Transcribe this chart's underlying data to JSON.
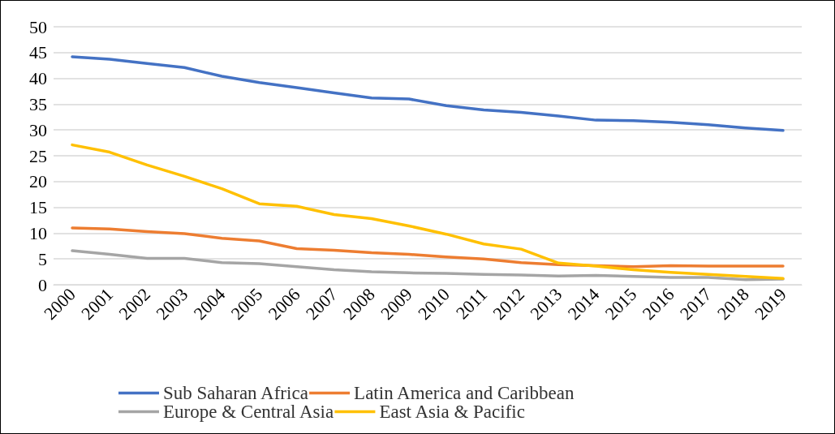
{
  "chart_data": {
    "type": "line",
    "categories": [
      "2000",
      "2001",
      "2002",
      "2003",
      "2004",
      "2005",
      "2006",
      "2007",
      "2008",
      "2009",
      "2010",
      "2011",
      "2012",
      "2013",
      "2014",
      "2015",
      "2016",
      "2017",
      "2018",
      "2019"
    ],
    "series": [
      {
        "name": "Sub Saharan Africa",
        "color": "#4472c4",
        "values": [
          44.2,
          43.7,
          42.9,
          42.1,
          40.4,
          39.2,
          38.2,
          37.2,
          36.2,
          36.0,
          34.7,
          33.9,
          33.4,
          32.7,
          31.9,
          31.8,
          31.5,
          31.0,
          30.4,
          29.9
        ]
      },
      {
        "name": "Latin America and Caribbean",
        "color": "#ed7d31",
        "values": [
          11.0,
          10.8,
          10.3,
          9.9,
          9.0,
          8.5,
          7.0,
          6.7,
          6.2,
          5.9,
          5.4,
          5.0,
          4.3,
          3.9,
          3.7,
          3.5,
          3.7,
          3.6,
          3.6,
          3.6
        ]
      },
      {
        "name": "Europe & Central Asia",
        "color": "#a5a5a5",
        "values": [
          6.6,
          5.9,
          5.1,
          5.1,
          4.3,
          4.1,
          3.5,
          2.9,
          2.5,
          2.3,
          2.2,
          2.0,
          1.9,
          1.7,
          1.8,
          1.6,
          1.4,
          1.4,
          1.0,
          1.1
        ]
      },
      {
        "name": "East Asia & Pacific",
        "color": "#ffc000",
        "values": [
          27.1,
          25.7,
          23.2,
          21.0,
          18.6,
          15.7,
          15.2,
          13.6,
          12.8,
          11.4,
          9.8,
          7.9,
          6.9,
          4.2,
          3.6,
          2.9,
          2.4,
          2.0,
          1.6,
          1.2
        ]
      }
    ],
    "ylim": [
      0,
      50
    ],
    "yticks": [
      0,
      5,
      10,
      15,
      20,
      25,
      30,
      35,
      40,
      45,
      50
    ],
    "grid": "y",
    "legend": "bottom",
    "marker": "none",
    "line_style": "solid"
  }
}
